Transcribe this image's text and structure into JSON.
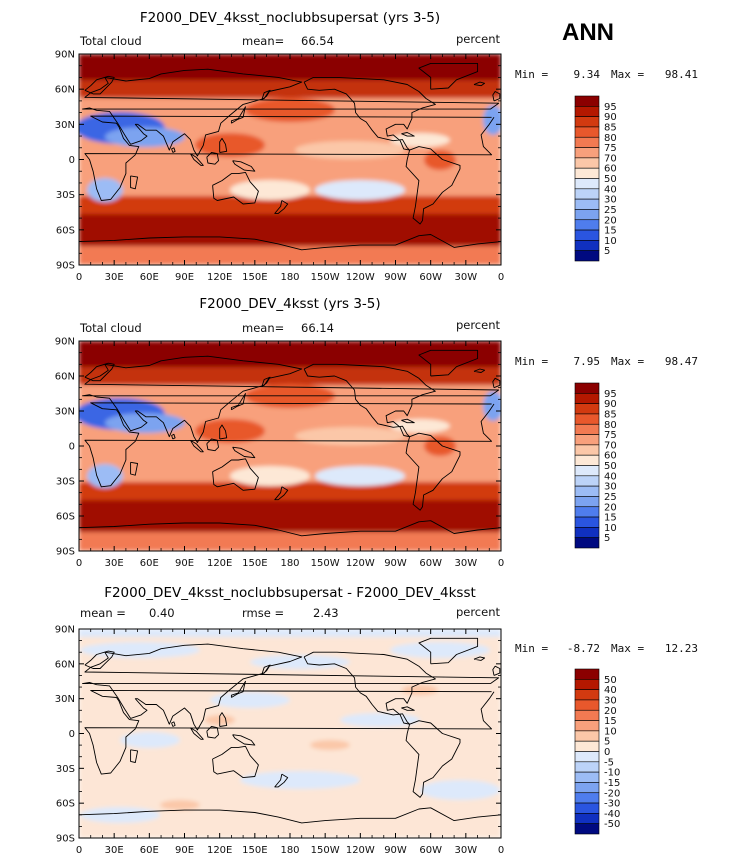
{
  "season_label": "ANN",
  "chart_data": [
    {
      "type": "heatmap",
      "title": "F2000_DEV_4ksst_noclubbsupersat (yrs 3-5)",
      "left_label": "Total cloud",
      "stat1_label": "mean=",
      "stat1_value": "66.54",
      "stat2_label": "",
      "stat2_value": "",
      "units": "percent",
      "min_label": "Min =",
      "min_value": "9.34",
      "max_label": "Max =",
      "max_value": "98.41",
      "colorbar_levels": [
        "95",
        "90",
        "85",
        "80",
        "75",
        "70",
        "60",
        "50",
        "40",
        "30",
        "25",
        "20",
        "15",
        "10",
        "5"
      ],
      "xlim": [
        0,
        360
      ],
      "ylim": [
        -90,
        90
      ],
      "x_ticks": [
        "0",
        "30E",
        "60E",
        "90E",
        "120E",
        "150E",
        "180",
        "150W",
        "120W",
        "90W",
        "60W",
        "30W",
        "0"
      ],
      "y_ticks": [
        "90N",
        "60N",
        "30N",
        "0",
        "30S",
        "60S",
        "90S"
      ]
    },
    {
      "type": "heatmap",
      "title": "F2000_DEV_4ksst (yrs 3-5)",
      "left_label": "Total cloud",
      "stat1_label": "mean=",
      "stat1_value": "66.14",
      "stat2_label": "",
      "stat2_value": "",
      "units": "percent",
      "min_label": "Min =",
      "min_value": "7.95",
      "max_label": "Max =",
      "max_value": "98.47",
      "colorbar_levels": [
        "95",
        "90",
        "85",
        "80",
        "75",
        "70",
        "60",
        "50",
        "40",
        "30",
        "25",
        "20",
        "15",
        "10",
        "5"
      ],
      "xlim": [
        0,
        360
      ],
      "ylim": [
        -90,
        90
      ],
      "x_ticks": [
        "0",
        "30E",
        "60E",
        "90E",
        "120E",
        "150E",
        "180",
        "150W",
        "120W",
        "90W",
        "60W",
        "30W",
        "0"
      ],
      "y_ticks": [
        "90N",
        "60N",
        "30N",
        "0",
        "30S",
        "60S",
        "90S"
      ]
    },
    {
      "type": "heatmap",
      "title": "F2000_DEV_4ksst_noclubbsupersat - F2000_DEV_4ksst",
      "left_label": "",
      "stat1_label": "mean =",
      "stat1_value": "0.40",
      "stat2_label": "rmse =",
      "stat2_value": "2.43",
      "units": "percent",
      "min_label": "Min =",
      "min_value": "-8.72",
      "max_label": "Max =",
      "max_value": "12.23",
      "colorbar_levels": [
        "50",
        "40",
        "30",
        "20",
        "15",
        "10",
        "5",
        "0",
        "-5",
        "-10",
        "-15",
        "-20",
        "-30",
        "-40",
        "-50"
      ],
      "xlim": [
        0,
        360
      ],
      "ylim": [
        -90,
        90
      ],
      "x_ticks": [
        "0",
        "30E",
        "60E",
        "90E",
        "120E",
        "150E",
        "180",
        "150W",
        "120W",
        "90W",
        "60W",
        "30W",
        "0"
      ],
      "y_ticks": [
        "90N",
        "60N",
        "30N",
        "0",
        "30S",
        "60S",
        "90S"
      ]
    }
  ],
  "colors": {
    "colorbar": [
      "#8b0000",
      "#b41800",
      "#d23a10",
      "#e8582c",
      "#f27a52",
      "#f8a07c",
      "#fbc7a8",
      "#fde8d6",
      "#dde9fb",
      "#bcd3f8",
      "#9cbcf5",
      "#7ca3f0",
      "#4f7ded",
      "#2a55e0",
      "#1030c0",
      "#000a80"
    ],
    "diff_base": "#fde6d6",
    "land_outline": "#000000"
  }
}
